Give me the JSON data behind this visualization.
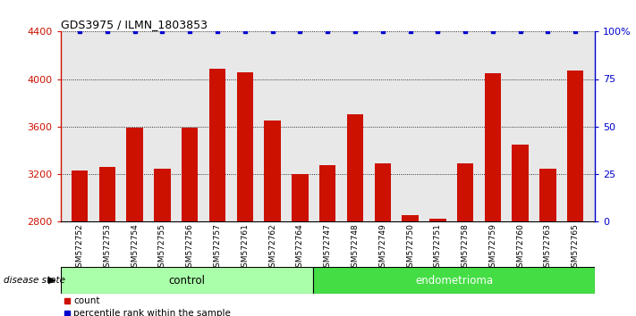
{
  "title": "GDS3975 / ILMN_1803853",
  "samples": [
    "GSM572752",
    "GSM572753",
    "GSM572754",
    "GSM572755",
    "GSM572756",
    "GSM572757",
    "GSM572761",
    "GSM572762",
    "GSM572764",
    "GSM572747",
    "GSM572748",
    "GSM572749",
    "GSM572750",
    "GSM572751",
    "GSM572758",
    "GSM572759",
    "GSM572760",
    "GSM572763",
    "GSM572765"
  ],
  "counts": [
    3230,
    3260,
    3590,
    3240,
    3590,
    4090,
    4060,
    3650,
    3200,
    3270,
    3700,
    3290,
    2850,
    2820,
    3290,
    4050,
    3450,
    3240,
    4070
  ],
  "percentiles": [
    100,
    100,
    100,
    100,
    100,
    100,
    100,
    100,
    100,
    100,
    100,
    100,
    100,
    100,
    100,
    100,
    100,
    100,
    100
  ],
  "control_count": 9,
  "endometrioma_count": 10,
  "ymin": 2800,
  "ymax": 4400,
  "yticks_left": [
    2800,
    3200,
    3600,
    4000,
    4400
  ],
  "yticks_right": [
    0,
    25,
    50,
    75,
    100
  ],
  "bar_color": "#cc1100",
  "dot_color": "#0000cc",
  "bg_color": "#e8e8e8",
  "control_color": "#aaffaa",
  "endometrioma_color": "#44dd44",
  "disease_label": "disease state",
  "control_label": "control",
  "endometrioma_label": "endometrioma",
  "legend_count_label": "count",
  "legend_dot_label": "percentile rank within the sample"
}
